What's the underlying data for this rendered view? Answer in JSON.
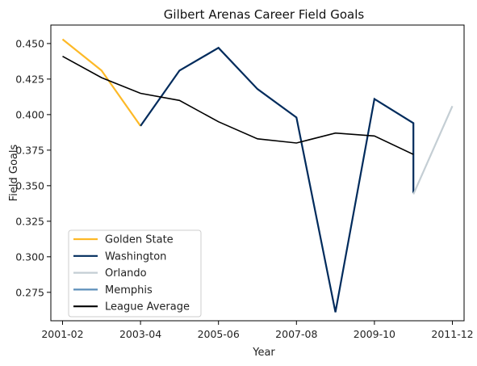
{
  "chart_data": {
    "type": "line",
    "title": "Gilbert Arenas Career Field Goals",
    "xlabel": "Year",
    "ylabel": "Field Goals",
    "x_ticks": [
      "2001-02",
      "2003-04",
      "2005-06",
      "2007-08",
      "2009-10",
      "2011-12"
    ],
    "y_ticks": [
      "0.275",
      "0.300",
      "0.325",
      "0.350",
      "0.375",
      "0.400",
      "0.425",
      "0.450"
    ],
    "ylim": [
      0.255,
      0.463
    ],
    "xlim": [
      2000.7,
      2011.3
    ],
    "legend_position": "lower-left",
    "series": [
      {
        "name": "Golden State",
        "color": "#FDB927",
        "points": [
          [
            2001,
            0.453
          ],
          [
            2002,
            0.431
          ],
          [
            2003,
            0.392
          ]
        ]
      },
      {
        "name": "Washington",
        "color": "#002B5C",
        "points": [
          [
            2003,
            0.392
          ],
          [
            2004,
            0.431
          ],
          [
            2005,
            0.447
          ],
          [
            2006,
            0.418
          ],
          [
            2007,
            0.398
          ],
          [
            2008,
            0.261
          ],
          [
            2009,
            0.411
          ],
          [
            2010,
            0.394
          ],
          [
            2010,
            0.345
          ]
        ]
      },
      {
        "name": "Orlando",
        "color": "#C4CED4",
        "points": [
          [
            2010,
            0.344
          ],
          [
            2011,
            0.406
          ]
        ]
      },
      {
        "name": "Memphis",
        "color": "#5D8FBA",
        "points": []
      },
      {
        "name": "League Average",
        "color": "#000000",
        "points": [
          [
            2001,
            0.441
          ],
          [
            2002,
            0.426
          ],
          [
            2003,
            0.415
          ],
          [
            2004,
            0.41
          ],
          [
            2005,
            0.395
          ],
          [
            2006,
            0.383
          ],
          [
            2007,
            0.38
          ],
          [
            2008,
            0.387
          ],
          [
            2009,
            0.385
          ],
          [
            2010,
            0.372
          ]
        ]
      }
    ]
  }
}
